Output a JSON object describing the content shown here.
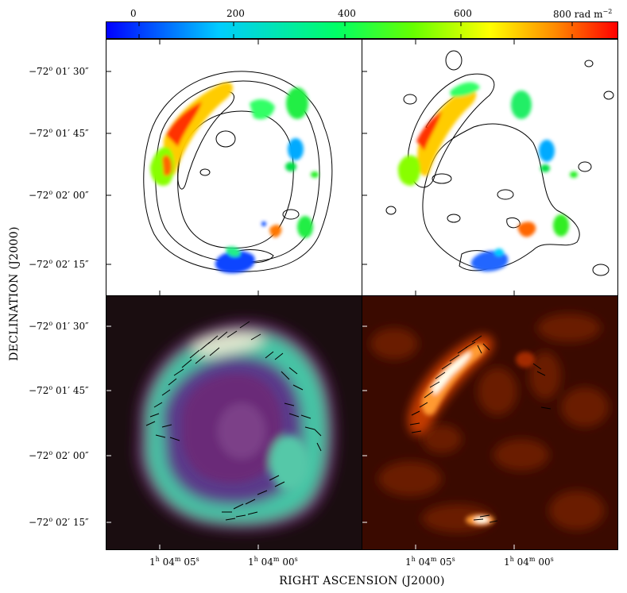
{
  "colorbar": {
    "ticks": [
      "0",
      "200",
      "400",
      "600"
    ],
    "last_tick": "800 rad m",
    "last_tick_exp": "−2",
    "stops": [
      "#0000ff",
      "#00aaff",
      "#00ffaa",
      "#33ff00",
      "#ffff00",
      "#ff8800",
      "#ff0000"
    ]
  },
  "axes": {
    "y_title": "DECLINATION (J2000)",
    "x_title": "RIGHT ASCENSION (J2000)",
    "y_ticks_top": [
      {
        "deg": "−72",
        "min": "01",
        "sec": "30"
      },
      {
        "deg": "−72",
        "min": "01",
        "sec": "45"
      },
      {
        "deg": "−72",
        "min": "02",
        "sec": "00"
      },
      {
        "deg": "−72",
        "min": "02",
        "sec": "15"
      }
    ],
    "y_ticks_bottom": [
      {
        "deg": "−72",
        "min": "01",
        "sec": "30"
      },
      {
        "deg": "−72",
        "min": "01",
        "sec": "45"
      },
      {
        "deg": "−72",
        "min": "02",
        "sec": "00"
      },
      {
        "deg": "−72",
        "min": "02",
        "sec": "15"
      }
    ],
    "x_ticks_left": [
      {
        "h": "1",
        "m": "04",
        "s": "05"
      },
      {
        "h": "1",
        "m": "04",
        "s": "00"
      }
    ],
    "x_ticks_right": [
      {
        "h": "1",
        "m": "04",
        "s": "05"
      },
      {
        "h": "1",
        "m": "04",
        "s": "00"
      }
    ],
    "deg_sym": "o",
    "min_sym": "′",
    "sec_sym": "″",
    "h_sym": "h",
    "m_sym": "m",
    "s_sym": "s"
  },
  "colors": {
    "bl_background": "#000000",
    "br_background": "#2a0500",
    "contour": "#000000"
  }
}
